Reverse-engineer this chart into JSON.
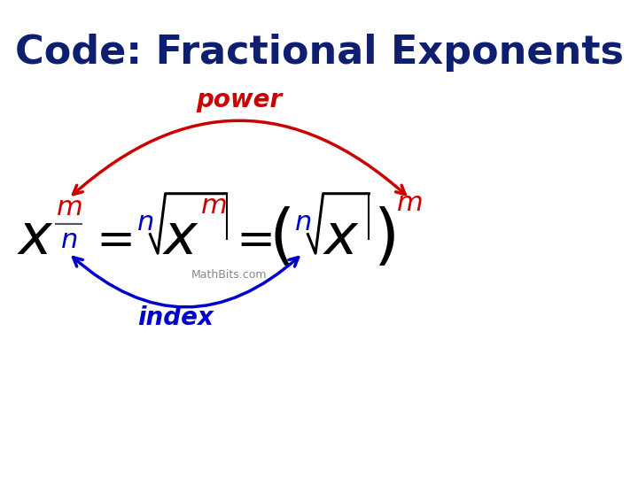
{
  "title": "Code: Fractional Exponents",
  "title_color": "#0d1f6e",
  "title_fontsize": 32,
  "bg_color": "#ffffff",
  "red_color": "#cc0000",
  "blue_color": "#0000cc",
  "black_color": "#000000",
  "gray_color": "#888888",
  "watermark": "MathBits.com"
}
